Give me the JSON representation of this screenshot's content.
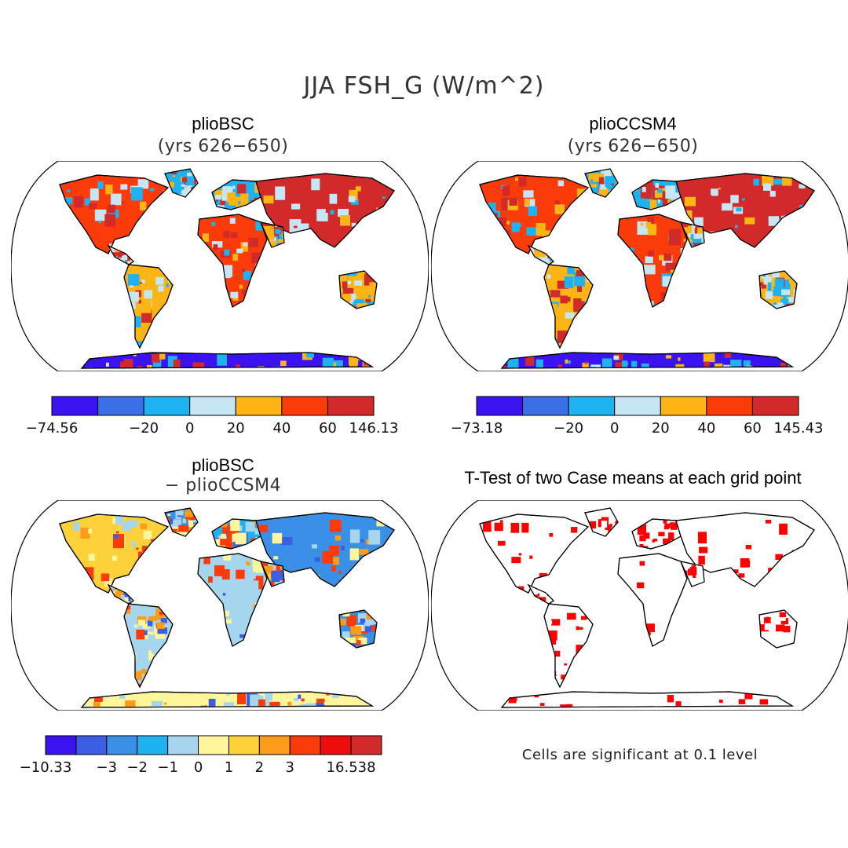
{
  "figure": {
    "title": "JJA FSH_G (W/m^2)"
  },
  "panels": [
    {
      "id": "pliobsc",
      "title": "plioBSC",
      "subtitle": "(yrs 626−650)",
      "colorbar": {
        "colors": [
          "#3b12f0",
          "#3a6fe6",
          "#1fb2f0",
          "#c6e6f4",
          "#fdb515",
          "#fb3c0a",
          "#d22a2a"
        ],
        "labels": [
          "−74.56",
          "−20",
          "0",
          "20",
          "40",
          "60",
          "146.13"
        ],
        "label_edges": [
          0,
          2,
          3,
          4,
          5,
          6,
          7
        ]
      }
    },
    {
      "id": "pliocc",
      "title": "plioCCSM4",
      "subtitle": "(yrs 626−650)",
      "colorbar": {
        "colors": [
          "#3b12f0",
          "#3a6fe6",
          "#1fb2f0",
          "#c6e6f4",
          "#fdb515",
          "#fb3c0a",
          "#d22a2a"
        ],
        "labels": [
          "−73.18",
          "−20",
          "0",
          "20",
          "40",
          "60",
          "145.43"
        ],
        "label_edges": [
          0,
          2,
          3,
          4,
          5,
          6,
          7
        ]
      }
    },
    {
      "id": "diff",
      "title": "plioBSC",
      "subtitle": "− plioCCSM4",
      "colorbar": {
        "colors": [
          "#3b12f0",
          "#3a5ee6",
          "#3a8fe6",
          "#1fb2f0",
          "#a6d6ee",
          "#fff59a",
          "#fdd13a",
          "#fb9c1a",
          "#fb3c0a",
          "#f00c0c",
          "#d22a2a"
        ],
        "labels": [
          "−10.33",
          "−3",
          "−2",
          "−1",
          "0",
          "1",
          "2",
          "3",
          "16.538"
        ],
        "label_edges": [
          0,
          2,
          3,
          4,
          5,
          6,
          7,
          8,
          10
        ]
      }
    },
    {
      "id": "ttest",
      "title": "T-Test of two Case means at each grid point",
      "note": "Cells are significant at 0.1 level"
    }
  ]
}
